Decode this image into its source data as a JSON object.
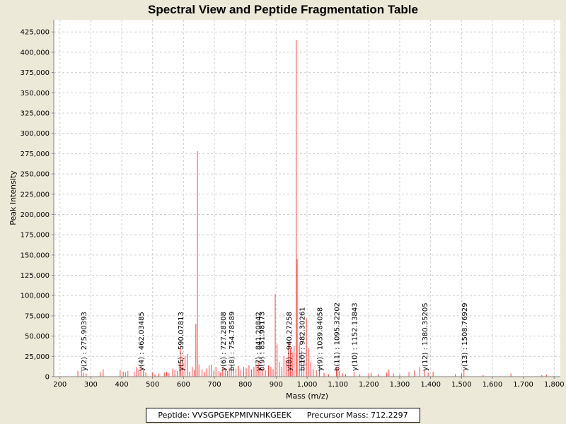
{
  "chart_data": {
    "type": "spectrum",
    "title": "Spectral View and Peptide Fragmentation Table",
    "xlabel": "Mass (m/z)",
    "ylabel": "Peak Intensity",
    "xlim": [
      180,
      1820
    ],
    "ylim": [
      0,
      440000
    ],
    "x_ticks": [
      200,
      300,
      400,
      500,
      600,
      700,
      800,
      900,
      1000,
      1100,
      1200,
      1300,
      1400,
      1500,
      1600,
      1700,
      1800
    ],
    "x_tick_labels": [
      "200",
      "300",
      "400",
      "500",
      "600",
      "700",
      "800",
      "900",
      "1,000",
      "1,100",
      "1,200",
      "1,300",
      "1,400",
      "1,500",
      "1,600",
      "1,700",
      "1,800"
    ],
    "y_ticks": [
      0,
      25000,
      50000,
      75000,
      100000,
      125000,
      150000,
      175000,
      200000,
      225000,
      250000,
      275000,
      300000,
      325000,
      350000,
      375000,
      400000,
      425000
    ],
    "y_tick_labels": [
      "0",
      "25,000",
      "50,000",
      "75,000",
      "100,000",
      "125,000",
      "150,000",
      "175,000",
      "200,000",
      "225,000",
      "250,000",
      "275,000",
      "300,000",
      "325,000",
      "350,000",
      "375,000",
      "400,000",
      "425,000"
    ],
    "grid": true,
    "peak_color": "#ff4040",
    "peaks": [
      [
        258,
        7000
      ],
      [
        270,
        12000
      ],
      [
        276,
        5000
      ],
      [
        285,
        4000
      ],
      [
        330,
        6000
      ],
      [
        340,
        9000
      ],
      [
        395,
        8000
      ],
      [
        405,
        6000
      ],
      [
        412,
        5500
      ],
      [
        420,
        7000
      ],
      [
        440,
        6000
      ],
      [
        448,
        12000
      ],
      [
        455,
        9000
      ],
      [
        462,
        14000
      ],
      [
        470,
        8000
      ],
      [
        478,
        5000
      ],
      [
        500,
        5000
      ],
      [
        508,
        3000
      ],
      [
        520,
        4000
      ],
      [
        538,
        5000
      ],
      [
        545,
        6000
      ],
      [
        553,
        4000
      ],
      [
        565,
        10000
      ],
      [
        572,
        8000
      ],
      [
        580,
        7000
      ],
      [
        588,
        18000
      ],
      [
        590,
        38000
      ],
      [
        598,
        22000
      ],
      [
        605,
        26000
      ],
      [
        612,
        28000
      ],
      [
        620,
        6000
      ],
      [
        628,
        12000
      ],
      [
        635,
        8000
      ],
      [
        640,
        65000
      ],
      [
        645,
        278000
      ],
      [
        650,
        15000
      ],
      [
        660,
        9000
      ],
      [
        668,
        6000
      ],
      [
        675,
        10000
      ],
      [
        683,
        14000
      ],
      [
        690,
        15000
      ],
      [
        698,
        8000
      ],
      [
        705,
        12000
      ],
      [
        715,
        7000
      ],
      [
        720,
        5000
      ],
      [
        727,
        12000
      ],
      [
        735,
        9000
      ],
      [
        742,
        7000
      ],
      [
        748,
        11000
      ],
      [
        755,
        15000
      ],
      [
        762,
        9000
      ],
      [
        770,
        10000
      ],
      [
        778,
        13000
      ],
      [
        786,
        8000
      ],
      [
        795,
        12000
      ],
      [
        803,
        10000
      ],
      [
        812,
        14000
      ],
      [
        820,
        9000
      ],
      [
        828,
        12000
      ],
      [
        835,
        15000
      ],
      [
        842,
        20000
      ],
      [
        848,
        12000
      ],
      [
        855,
        10000
      ],
      [
        865,
        8000
      ],
      [
        875,
        14000
      ],
      [
        883,
        12000
      ],
      [
        890,
        9000
      ],
      [
        897,
        102000
      ],
      [
        903,
        40000
      ],
      [
        910,
        18000
      ],
      [
        918,
        12000
      ],
      [
        925,
        25000
      ],
      [
        932,
        20000
      ],
      [
        940,
        42000
      ],
      [
        946,
        35000
      ],
      [
        952,
        30000
      ],
      [
        958,
        38000
      ],
      [
        965,
        415000
      ],
      [
        968,
        145000
      ],
      [
        975,
        40000
      ],
      [
        982,
        32000
      ],
      [
        990,
        20000
      ],
      [
        998,
        72000
      ],
      [
        1005,
        35000
      ],
      [
        1012,
        18000
      ],
      [
        1020,
        10000
      ],
      [
        1030,
        8000
      ],
      [
        1040,
        14000
      ],
      [
        1055,
        5000
      ],
      [
        1070,
        3000
      ],
      [
        1095,
        12000
      ],
      [
        1100,
        10000
      ],
      [
        1105,
        7000
      ],
      [
        1115,
        4000
      ],
      [
        1125,
        3000
      ],
      [
        1152,
        6000
      ],
      [
        1170,
        3000
      ],
      [
        1200,
        4000
      ],
      [
        1208,
        5000
      ],
      [
        1230,
        3000
      ],
      [
        1258,
        5000
      ],
      [
        1265,
        9000
      ],
      [
        1280,
        4000
      ],
      [
        1300,
        3000
      ],
      [
        1330,
        6000
      ],
      [
        1348,
        8000
      ],
      [
        1365,
        12000
      ],
      [
        1380,
        9000
      ],
      [
        1392,
        5000
      ],
      [
        1408,
        6000
      ],
      [
        1480,
        3000
      ],
      [
        1500,
        4000
      ],
      [
        1508,
        7000
      ],
      [
        1570,
        2000
      ],
      [
        1660,
        4000
      ],
      [
        1760,
        2000
      ],
      [
        1775,
        2500
      ]
    ],
    "annotations": [
      {
        "mz": 275.90393,
        "text": "y(2) : 275.90393"
      },
      {
        "mz": 462.03485,
        "text": "y(4) : 462.03485"
      },
      {
        "mz": 590.07813,
        "text": "y(5) : 590.07813"
      },
      {
        "mz": 727.28308,
        "text": "y(6) : 727.28308"
      },
      {
        "mz": 754.78589,
        "text": "b(8) : 754.78589"
      },
      {
        "mz": 841.20842,
        "text": "y(7) : 841.20842"
      },
      {
        "mz": 851.98173,
        "text": "b(9) : 851.98173"
      },
      {
        "mz": 940.27258,
        "text": "y(8) : 940.27258"
      },
      {
        "mz": 982.30261,
        "text": "b(10) : 982.30261"
      },
      {
        "mz": 1039.84058,
        "text": "y(9) : 1039.84058"
      },
      {
        "mz": 1095.32202,
        "text": "b(11) : 1095.32202"
      },
      {
        "mz": 1152.13843,
        "text": "y(10) : 1152.13843"
      },
      {
        "mz": 1380.35205,
        "text": "y(12) : 1380.35205"
      },
      {
        "mz": 1508.76929,
        "text": "y(13) : 1508.76929"
      }
    ]
  },
  "legend": {
    "peptide": "Peptide: VVSGPGEKPMIVNHKGEEK",
    "precursor": "Precursor Mass: 712.2297"
  }
}
